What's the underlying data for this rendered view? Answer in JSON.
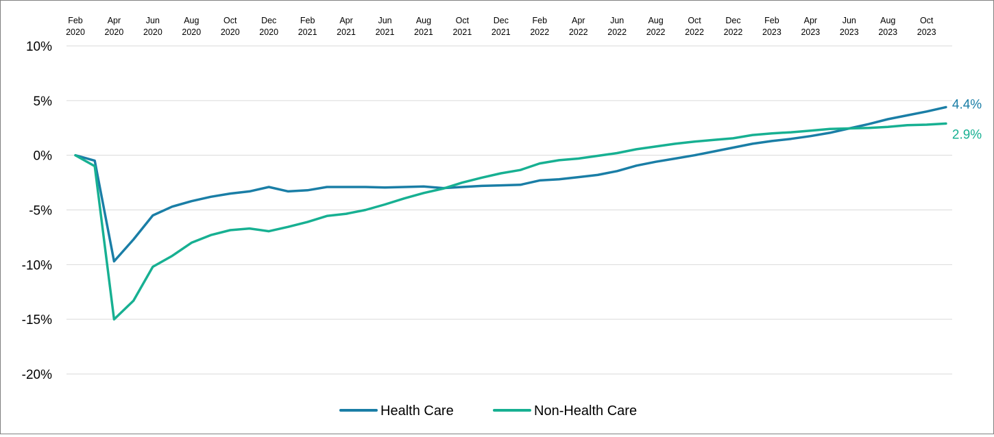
{
  "colors": {
    "health_care": "#1a7ea6",
    "non_health_care": "#17b092",
    "grid": "#d9d9d9",
    "border": "#7f7f7f"
  },
  "chart_data": {
    "type": "line",
    "x": [
      "2020-02",
      "2020-03",
      "2020-04",
      "2020-05",
      "2020-06",
      "2020-07",
      "2020-08",
      "2020-09",
      "2020-10",
      "2020-11",
      "2020-12",
      "2021-01",
      "2021-02",
      "2021-03",
      "2021-04",
      "2021-05",
      "2021-06",
      "2021-07",
      "2021-08",
      "2021-09",
      "2021-10",
      "2021-11",
      "2021-12",
      "2022-01",
      "2022-02",
      "2022-03",
      "2022-04",
      "2022-05",
      "2022-06",
      "2022-07",
      "2022-08",
      "2022-09",
      "2022-10",
      "2022-11",
      "2022-12",
      "2023-01",
      "2023-02",
      "2023-03",
      "2023-04",
      "2023-05",
      "2023-06",
      "2023-07",
      "2023-08",
      "2023-09",
      "2023-10",
      "2023-11"
    ],
    "x_tick_labels": [
      {
        "month": "Feb",
        "year": "2020"
      },
      {
        "month": "Apr",
        "year": "2020"
      },
      {
        "month": "Jun",
        "year": "2020"
      },
      {
        "month": "Aug",
        "year": "2020"
      },
      {
        "month": "Oct",
        "year": "2020"
      },
      {
        "month": "Dec",
        "year": "2020"
      },
      {
        "month": "Feb",
        "year": "2021"
      },
      {
        "month": "Apr",
        "year": "2021"
      },
      {
        "month": "Jun",
        "year": "2021"
      },
      {
        "month": "Aug",
        "year": "2021"
      },
      {
        "month": "Oct",
        "year": "2021"
      },
      {
        "month": "Dec",
        "year": "2021"
      },
      {
        "month": "Feb",
        "year": "2022"
      },
      {
        "month": "Apr",
        "year": "2022"
      },
      {
        "month": "Jun",
        "year": "2022"
      },
      {
        "month": "Aug",
        "year": "2022"
      },
      {
        "month": "Oct",
        "year": "2022"
      },
      {
        "month": "Dec",
        "year": "2022"
      },
      {
        "month": "Feb",
        "year": "2023"
      },
      {
        "month": "Apr",
        "year": "2023"
      },
      {
        "month": "Jun",
        "year": "2023"
      },
      {
        "month": "Aug",
        "year": "2023"
      },
      {
        "month": "Oct",
        "year": "2023"
      }
    ],
    "y_ticks": [
      10,
      5,
      0,
      -5,
      -10,
      -15,
      -20
    ],
    "y_tick_labels": [
      "10%",
      "5%",
      "0%",
      "-5%",
      "-10%",
      "-15%",
      "-20%"
    ],
    "ylim": [
      -20,
      10
    ],
    "x_axis_position": "top",
    "grid": true,
    "legend_position": "bottom-center",
    "series": [
      {
        "name": "Health Care",
        "color": "#1a7ea6",
        "end_label": "4.4%",
        "values": [
          0,
          -0.5,
          -9.7,
          -7.7,
          -5.5,
          -4.7,
          -4.2,
          -3.8,
          -3.5,
          -3.3,
          -2.9,
          -3.3,
          -3.2,
          -2.9,
          -2.9,
          -2.9,
          -2.95,
          -2.9,
          -2.85,
          -3.0,
          -2.9,
          -2.8,
          -2.75,
          -2.7,
          -2.3,
          -2.2,
          -2.0,
          -1.8,
          -1.45,
          -0.95,
          -0.6,
          -0.3,
          0.0,
          0.35,
          0.7,
          1.05,
          1.3,
          1.5,
          1.75,
          2.05,
          2.45,
          2.85,
          3.3,
          3.65,
          4.0,
          4.4
        ]
      },
      {
        "name": "Non-Health Care",
        "color": "#17b092",
        "end_label": "2.9%",
        "values": [
          0,
          -1.0,
          -15.0,
          -13.3,
          -10.2,
          -9.2,
          -8.0,
          -7.3,
          -6.85,
          -6.7,
          -6.95,
          -6.55,
          -6.1,
          -5.55,
          -5.35,
          -5.0,
          -4.5,
          -3.95,
          -3.45,
          -3.05,
          -2.5,
          -2.05,
          -1.65,
          -1.35,
          -0.75,
          -0.45,
          -0.3,
          -0.05,
          0.2,
          0.55,
          0.8,
          1.05,
          1.25,
          1.4,
          1.55,
          1.85,
          2.0,
          2.1,
          2.25,
          2.4,
          2.45,
          2.5,
          2.6,
          2.75,
          2.8,
          2.9
        ]
      }
    ]
  }
}
